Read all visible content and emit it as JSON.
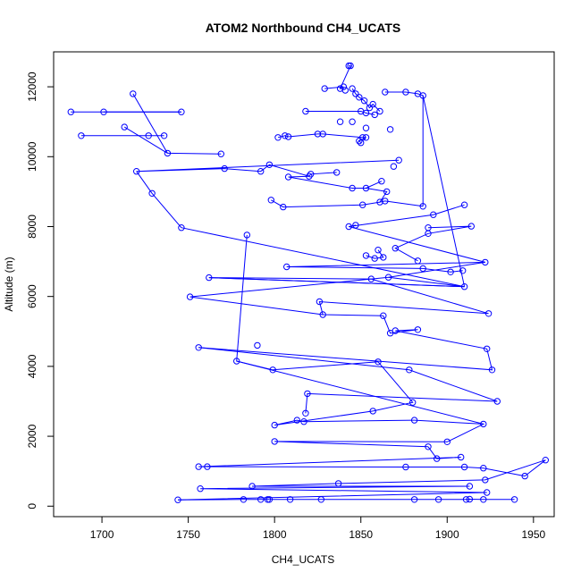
{
  "chart_data": {
    "type": "scatter",
    "title": "ATOM2 Northbound CH4_UCATS",
    "xlabel": "CH4_UCATS",
    "ylabel": "Altitude (m)",
    "xlim": [
      1672,
      1962
    ],
    "ylim": [
      -300,
      13000
    ],
    "xticks": [
      1700,
      1750,
      1800,
      1850,
      1900,
      1950
    ],
    "yticks": [
      0,
      2000,
      4000,
      6000,
      8000,
      10000,
      12000
    ],
    "mode": "points+lines",
    "color": "#0000FF",
    "points": [
      [
        1843,
        12600
      ],
      [
        1844,
        12600
      ],
      [
        1829,
        11950
      ],
      [
        1838,
        11950
      ],
      [
        1840,
        12000
      ],
      [
        1845,
        11950
      ],
      [
        1847,
        11800
      ],
      [
        1841,
        11900
      ],
      [
        1849,
        11700
      ],
      [
        1852,
        11600
      ],
      [
        1855,
        11400
      ],
      [
        1857,
        11500
      ],
      [
        1861,
        11300
      ],
      [
        1864,
        11850
      ],
      [
        1876,
        11850
      ],
      [
        1883,
        11800
      ],
      [
        1886,
        11750
      ],
      [
        1718,
        11800
      ],
      [
        1682,
        11280
      ],
      [
        1701,
        11280
      ],
      [
        1746,
        11280
      ],
      [
        1818,
        11300
      ],
      [
        1850,
        11300
      ],
      [
        1853,
        11250
      ],
      [
        1858,
        11200
      ],
      [
        1838,
        11000
      ],
      [
        1845,
        11000
      ],
      [
        1713,
        10850
      ],
      [
        1853,
        10820
      ],
      [
        1867,
        10780
      ],
      [
        1688,
        10600
      ],
      [
        1727,
        10600
      ],
      [
        1736,
        10600
      ],
      [
        1802,
        10550
      ],
      [
        1806,
        10600
      ],
      [
        1808,
        10570
      ],
      [
        1825,
        10650
      ],
      [
        1828,
        10650
      ],
      [
        1851,
        10550
      ],
      [
        1853,
        10550
      ],
      [
        1849,
        10450
      ],
      [
        1850,
        10400
      ],
      [
        1738,
        10100
      ],
      [
        1769,
        10080
      ],
      [
        1872,
        9900
      ],
      [
        1720,
        9580
      ],
      [
        1771,
        9660
      ],
      [
        1792,
        9580
      ],
      [
        1797,
        9770
      ],
      [
        1820,
        9440
      ],
      [
        1821,
        9500
      ],
      [
        1836,
        9550
      ],
      [
        1869,
        9720
      ],
      [
        1808,
        9420
      ],
      [
        1845,
        9100
      ],
      [
        1853,
        9100
      ],
      [
        1862,
        9300
      ],
      [
        1729,
        8950
      ],
      [
        1865,
        9000
      ],
      [
        1798,
        8760
      ],
      [
        1805,
        8560
      ],
      [
        1851,
        8620
      ],
      [
        1861,
        8700
      ],
      [
        1864,
        8730
      ],
      [
        1886,
        8580
      ],
      [
        1910,
        8620
      ],
      [
        1892,
        8340
      ],
      [
        1843,
        8000
      ],
      [
        1847,
        8040
      ],
      [
        1746,
        7970
      ],
      [
        1784,
        7760
      ],
      [
        1889,
        7970
      ],
      [
        1914,
        8010
      ],
      [
        1889,
        7800
      ],
      [
        1870,
        7380
      ],
      [
        1883,
        7020
      ],
      [
        1860,
        7330
      ],
      [
        1863,
        7120
      ],
      [
        1858,
        7090
      ],
      [
        1853,
        7170
      ],
      [
        1922,
        6980
      ],
      [
        1807,
        6850
      ],
      [
        1886,
        6800
      ],
      [
        1902,
        6700
      ],
      [
        1909,
        6740
      ],
      [
        1866,
        6550
      ],
      [
        1910,
        6280
      ],
      [
        1762,
        6540
      ],
      [
        1856,
        6500
      ],
      [
        1751,
        5990
      ],
      [
        1924,
        5510
      ],
      [
        1826,
        5850
      ],
      [
        1828,
        5480
      ],
      [
        1863,
        5450
      ],
      [
        1867,
        4950
      ],
      [
        1883,
        5050
      ],
      [
        1870,
        5020
      ],
      [
        1923,
        4500
      ],
      [
        1926,
        3900
      ],
      [
        1756,
        4540
      ],
      [
        1790,
        4600
      ],
      [
        1778,
        4150
      ],
      [
        1799,
        3900
      ],
      [
        1860,
        4130
      ],
      [
        1878,
        3900
      ],
      [
        1929,
        3000
      ],
      [
        1819,
        3220
      ],
      [
        1818,
        2660
      ],
      [
        1880,
        2970
      ],
      [
        1857,
        2720
      ],
      [
        1800,
        2320
      ],
      [
        1813,
        2460
      ],
      [
        1817,
        2420
      ],
      [
        1881,
        2460
      ],
      [
        1921,
        2350
      ],
      [
        1900,
        1840
      ],
      [
        1800,
        1850
      ],
      [
        1889,
        1700
      ],
      [
        1894,
        1360
      ],
      [
        1908,
        1400
      ],
      [
        1756,
        1130
      ],
      [
        1761,
        1130
      ],
      [
        1876,
        1120
      ],
      [
        1910,
        1120
      ],
      [
        1921,
        1090
      ],
      [
        1945,
        860
      ],
      [
        1957,
        1320
      ],
      [
        1922,
        750
      ],
      [
        1837,
        650
      ],
      [
        1787,
        570
      ],
      [
        1913,
        570
      ],
      [
        1757,
        500
      ],
      [
        1923,
        390
      ],
      [
        1744,
        180
      ],
      [
        1782,
        190
      ],
      [
        1792,
        190
      ],
      [
        1796,
        190
      ],
      [
        1797,
        190
      ],
      [
        1809,
        190
      ],
      [
        1827,
        190
      ],
      [
        1881,
        190
      ],
      [
        1895,
        190
      ],
      [
        1911,
        190
      ],
      [
        1913,
        200
      ],
      [
        1921,
        190
      ],
      [
        1939,
        190
      ]
    ],
    "path_order": [
      [
        18,
        19,
        20
      ],
      [
        17,
        42,
        27
      ],
      [
        30,
        31,
        32
      ],
      [
        19,
        20
      ],
      [
        21,
        22,
        23,
        24
      ],
      [
        0,
        1,
        3,
        4,
        2
      ],
      [
        5,
        6,
        8,
        9,
        10,
        11,
        12
      ],
      [
        13,
        14,
        15,
        16,
        64
      ],
      [
        16,
        86
      ],
      [
        33,
        34,
        35,
        36,
        37,
        38,
        39,
        40,
        41
      ],
      [
        42,
        43
      ],
      [
        44,
        45,
        46,
        47,
        48,
        49,
        50,
        51
      ],
      [
        45,
        57,
        69,
        86,
        87
      ],
      [
        49,
        53,
        54,
        55,
        56
      ],
      [
        55,
        58,
        62,
        63,
        64
      ],
      [
        59,
        60,
        61,
        62
      ],
      [
        65,
        66,
        67,
        68
      ],
      [
        67,
        80,
        85,
        89,
        92
      ],
      [
        70,
        101,
        114
      ],
      [
        71,
        72,
        73,
        74,
        75
      ],
      [
        76,
        77,
        78,
        79
      ],
      [
        80,
        81,
        82,
        83,
        84
      ],
      [
        85,
        86,
        87,
        88
      ],
      [
        88,
        90,
        91,
        92,
        93
      ],
      [
        93,
        94,
        95,
        96,
        97,
        98,
        99
      ],
      [
        99,
        104,
        105,
        106,
        107
      ],
      [
        101,
        102,
        103
      ],
      [
        103,
        108,
        109
      ],
      [
        109,
        110,
        111,
        112,
        113
      ],
      [
        113,
        114,
        115,
        116,
        117
      ],
      [
        117,
        118,
        119,
        120,
        121
      ],
      [
        121,
        122,
        123,
        124,
        125
      ],
      [
        125,
        126,
        127,
        128,
        129
      ],
      [
        129,
        130,
        131,
        132,
        133
      ],
      [
        133,
        134,
        135,
        136,
        137
      ],
      [
        137,
        138,
        139,
        140,
        141
      ],
      [
        141,
        142,
        143,
        144,
        145
      ],
      [
        145,
        146,
        147,
        148
      ]
    ]
  }
}
